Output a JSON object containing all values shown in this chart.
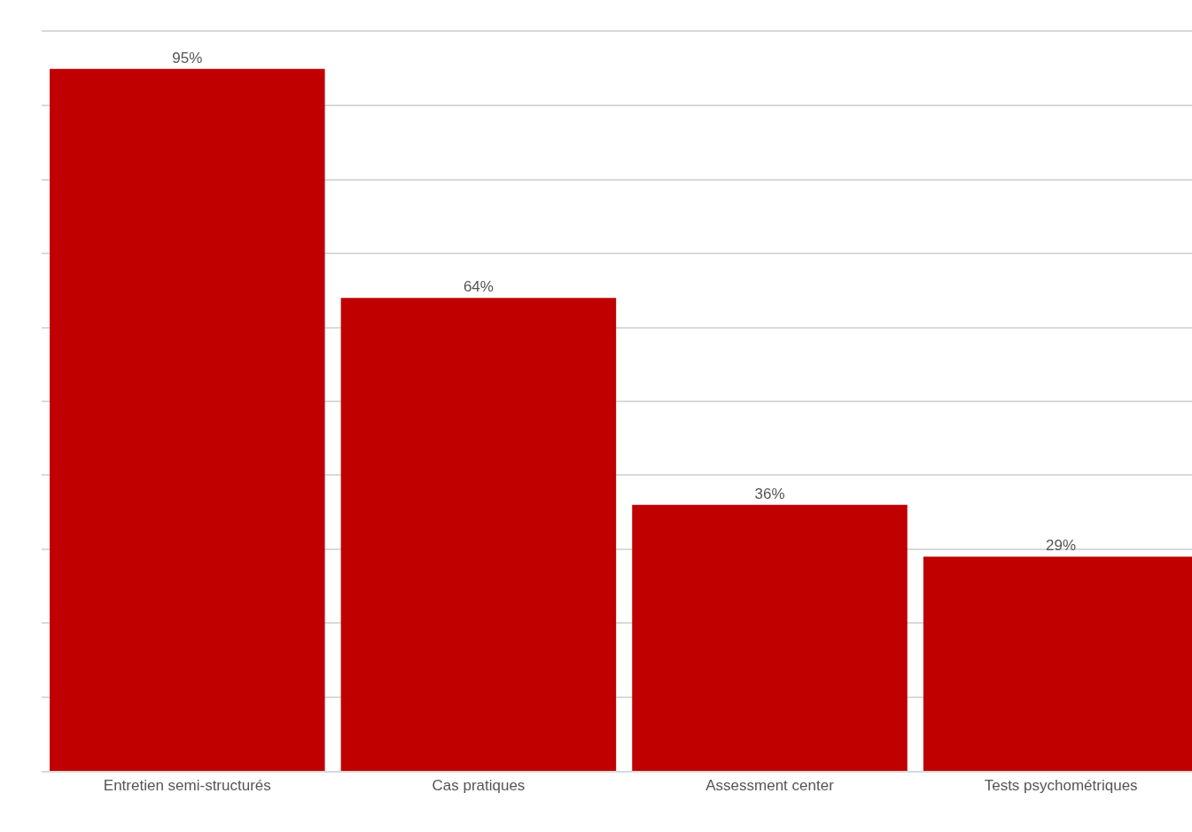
{
  "chart_data": {
    "type": "bar",
    "categories": [
      "Entretien semi-structurés",
      "Cas pratiques",
      "Assessment center",
      "Tests psychométriques"
    ],
    "values": [
      95,
      64,
      36,
      29
    ],
    "value_labels": [
      "95%",
      "64%",
      "36%",
      "29%"
    ],
    "color": "#c00000",
    "ylim": [
      0,
      100
    ],
    "yticks": [
      {
        "value": 0,
        "label": null
      },
      {
        "value": 10,
        "label": null
      },
      {
        "value": 20,
        "label": null
      },
      {
        "value": 30,
        "label": null
      },
      {
        "value": 40,
        "label": null
      },
      {
        "value": 50,
        "label": null
      },
      {
        "value": 60,
        "label": null
      },
      {
        "value": 70,
        "label": null
      },
      {
        "value": 80,
        "label": null
      },
      {
        "value": 90,
        "label": null
      },
      {
        "value": 100,
        "label": null
      }
    ],
    "tick_labels": "x",
    "grid": "y",
    "legend": false
  }
}
